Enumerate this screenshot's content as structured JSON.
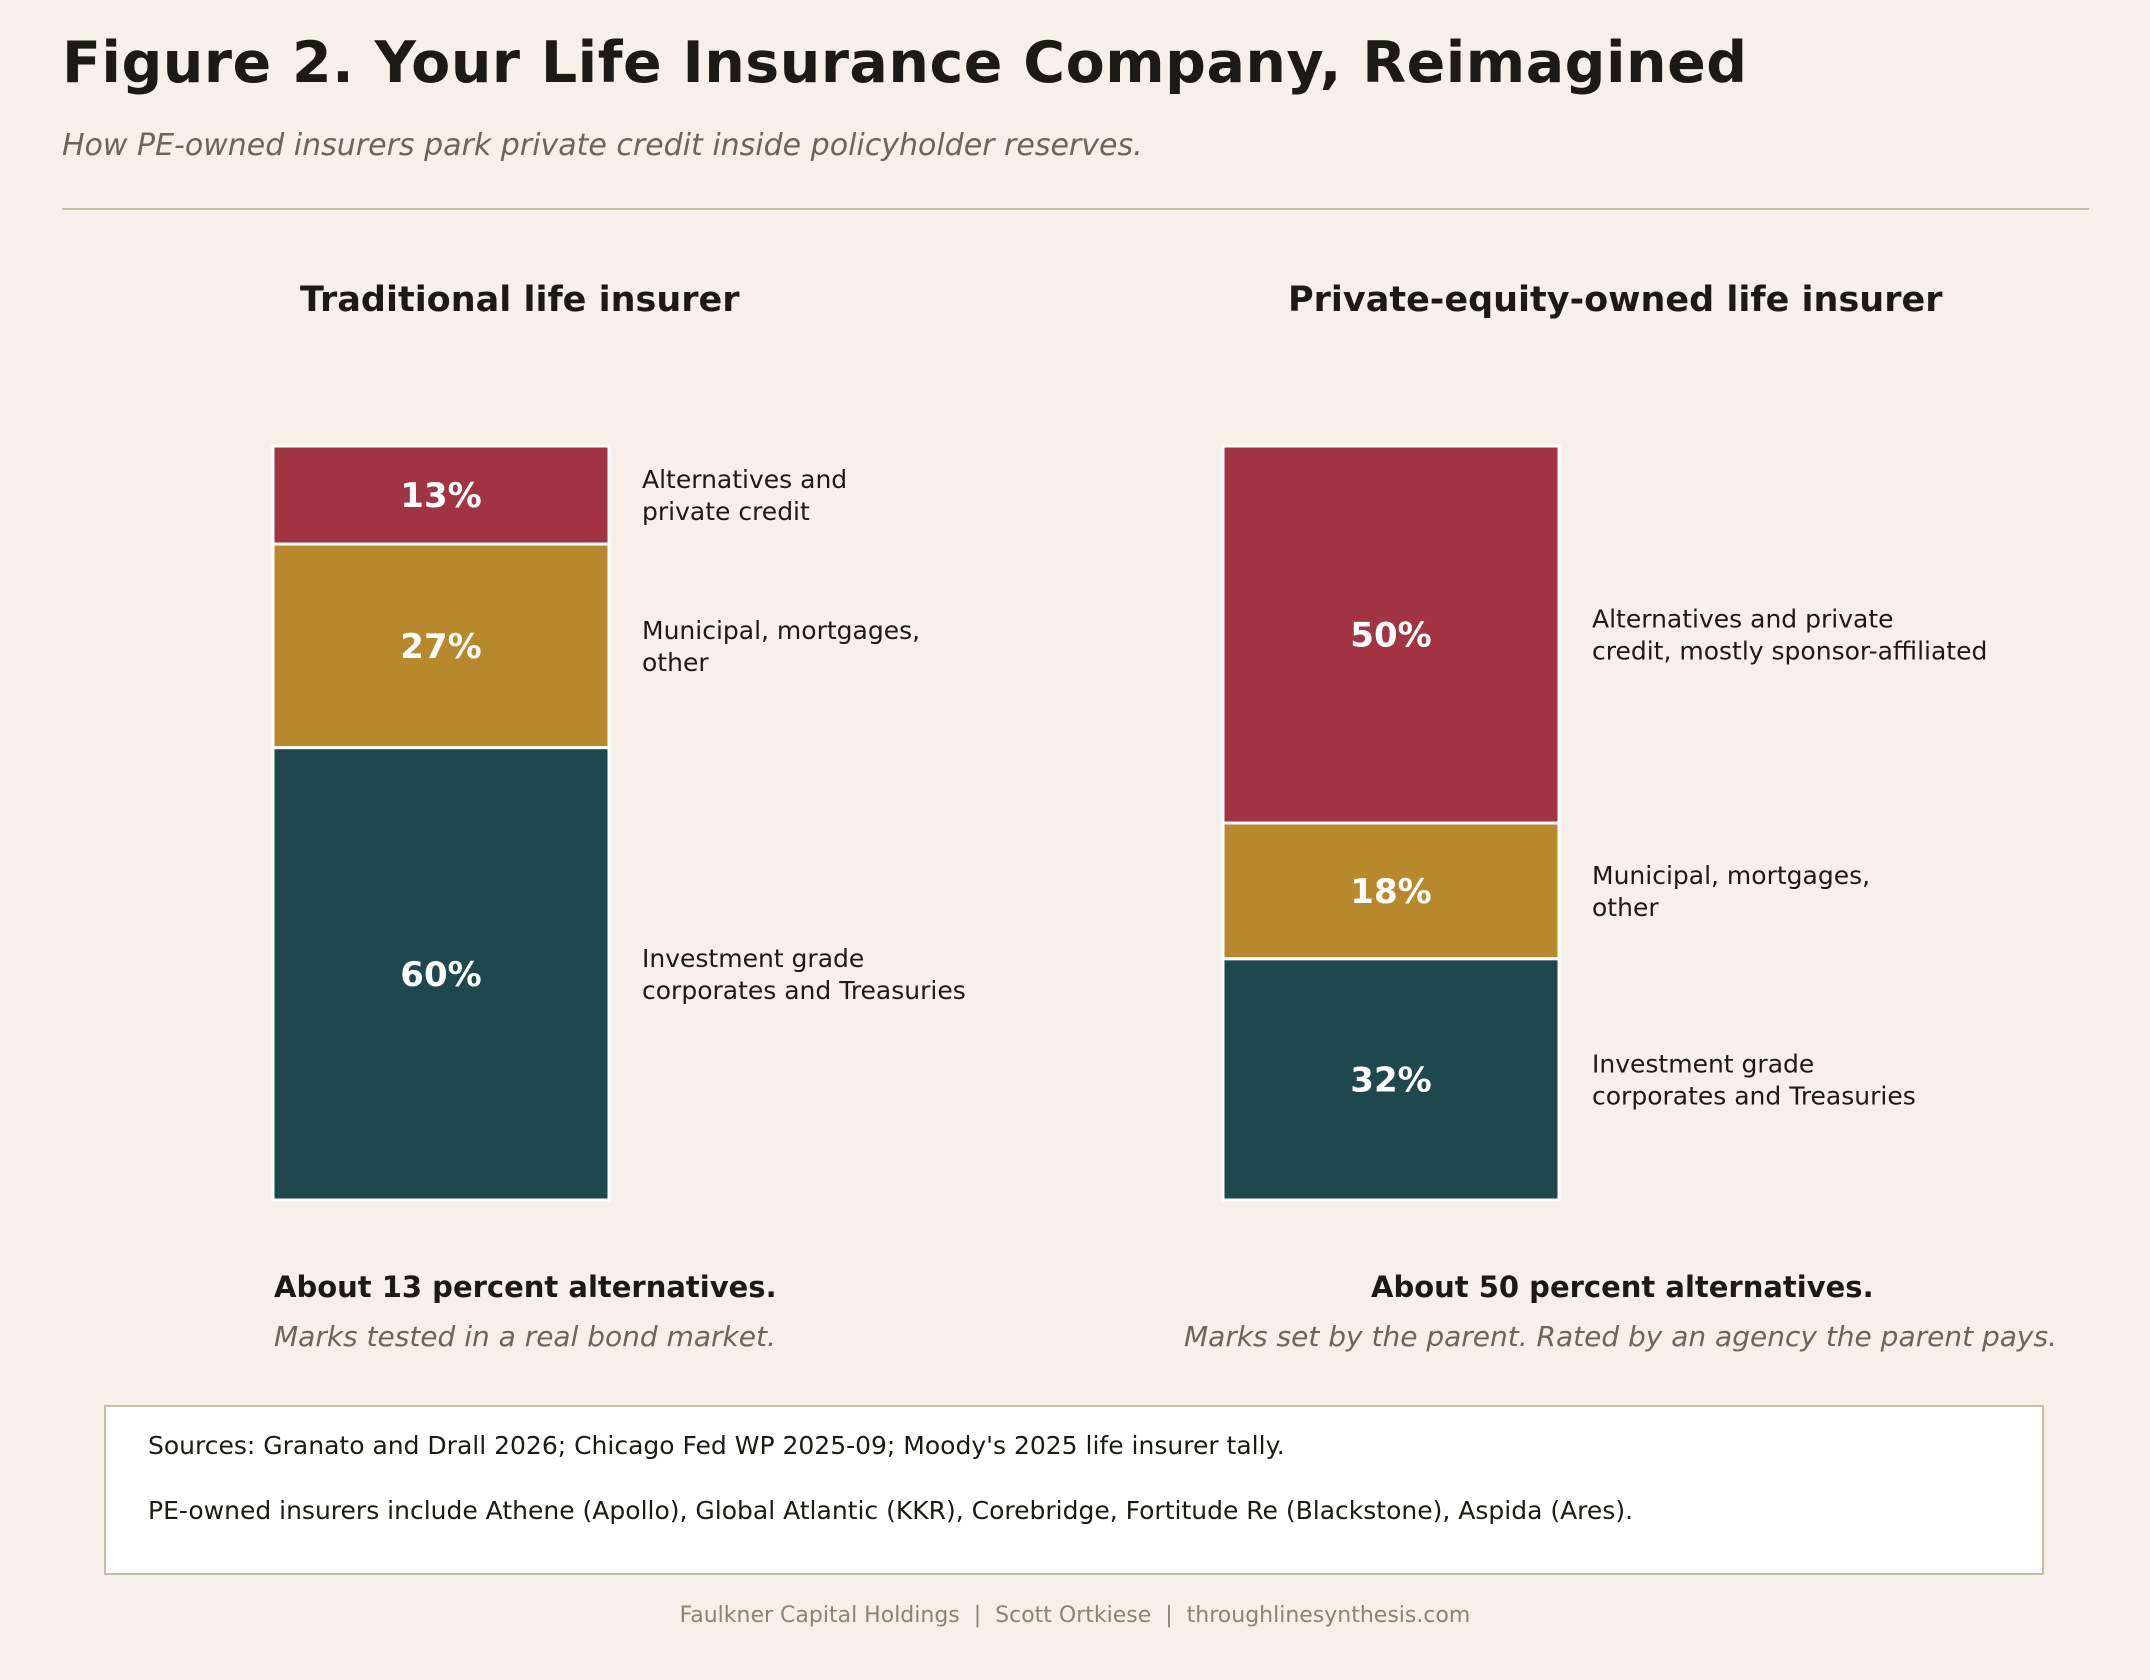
{
  "header": {
    "title": "Figure 2. Your Life Insurance Company, Reimagined",
    "subtitle": "How PE-owned insurers park private credit inside policyholder reserves."
  },
  "colors": {
    "background": "#f5f0e8",
    "alternatives": "#a23343",
    "municipal": "#b8892c",
    "investment_grade": "#1e474e",
    "rule": "#c4bfa8"
  },
  "chart_data": [
    {
      "type": "bar",
      "stacked": true,
      "title": "Traditional life insurer",
      "categories": [
        "Investment grade corporates and Treasuries",
        "Municipal, mortgages, other",
        "Alternatives and private credit"
      ],
      "series": [
        {
          "key": "investment_grade",
          "value": 60,
          "label": "60%",
          "legend": [
            "Investment grade",
            "corporates and Treasuries"
          ]
        },
        {
          "key": "municipal",
          "value": 27,
          "label": "27%",
          "legend": [
            "Municipal, mortgages,",
            "other"
          ]
        },
        {
          "key": "alternatives",
          "value": 13,
          "label": "13%",
          "legend": [
            "Alternatives and",
            "private credit"
          ]
        }
      ],
      "callout": "About 13 percent alternatives.",
      "note": "Marks tested in a real bond market."
    },
    {
      "type": "bar",
      "stacked": true,
      "title": "Private-equity-owned life insurer",
      "categories": [
        "Investment grade corporates and Treasuries",
        "Municipal, mortgages, other",
        "Alternatives and private credit, mostly sponsor-affiliated"
      ],
      "series": [
        {
          "key": "investment_grade",
          "value": 32,
          "label": "32%",
          "legend": [
            "Investment grade",
            "corporates and Treasuries"
          ]
        },
        {
          "key": "municipal",
          "value": 18,
          "label": "18%",
          "legend": [
            "Municipal, mortgages,",
            "other"
          ]
        },
        {
          "key": "alternatives",
          "value": 50,
          "label": "50%",
          "legend": [
            "Alternatives and private",
            "credit, mostly sponsor-affiliated"
          ]
        }
      ],
      "callout": "About 50 percent alternatives.",
      "note": "Marks set by the parent. Rated by an agency the parent pays."
    }
  ],
  "sources": {
    "line1": "Sources: Granato and Drall 2026; Chicago Fed WP 2025-09; Moody's 2025 life insurer tally.",
    "line2": "PE-owned insurers include Athene (Apollo), Global Atlantic (KKR), Corebridge, Fortitude Re (Blackstone), Aspida (Ares)."
  },
  "footer": "Faulkner Capital Holdings  |  Scott Ortkiese  |  throughlinesynthesis.com"
}
